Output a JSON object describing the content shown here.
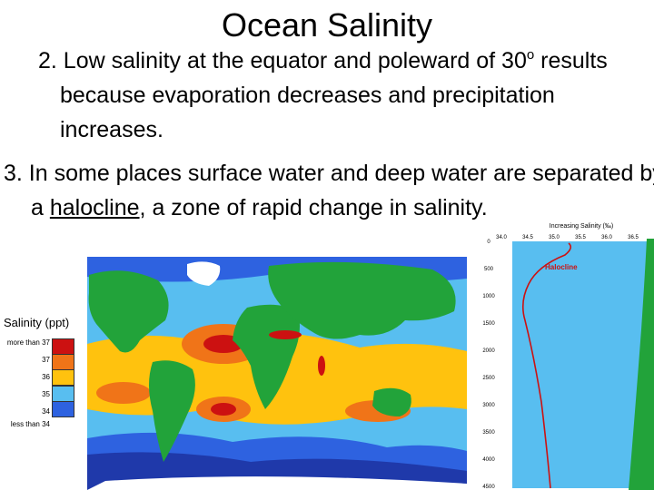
{
  "slide": {
    "title": "Ocean Salinity",
    "point2": {
      "before": "2. Low salinity at the equator and poleward of 30",
      "sup": "o",
      "after": " results because evaporation decreases and precipitation increases."
    },
    "point3": {
      "before": "3. In some places surface water and deep water are separated by a ",
      "term": "halocline",
      "after": ", a zone of rapid change in salinity."
    }
  },
  "map_legend": {
    "title": "Salinity (ppt)",
    "items": [
      {
        "label": "more than 37",
        "color": "#cc1111"
      },
      {
        "label": "37",
        "color": "#f07418"
      },
      {
        "label": "36",
        "color": "#ffc20e"
      },
      {
        "label": "35",
        "color": "#58bef0"
      },
      {
        "label": "34",
        "color": "#2e62e0"
      },
      {
        "label": "less than 34",
        "color": "#1c2f9c"
      }
    ]
  },
  "profile_chart": {
    "title": "Increasing Salinity (‰)",
    "curve_label": "Halocline",
    "x_ticks": [
      "34.0",
      "34.5",
      "35.0",
      "35.5",
      "36.0",
      "36.5"
    ],
    "y_ticks": [
      "0",
      "500",
      "1000",
      "1500",
      "2000",
      "2500",
      "3000",
      "3500",
      "4000",
      "4500"
    ],
    "curve_color": "#cc1111",
    "land_color": "#22a33a"
  }
}
